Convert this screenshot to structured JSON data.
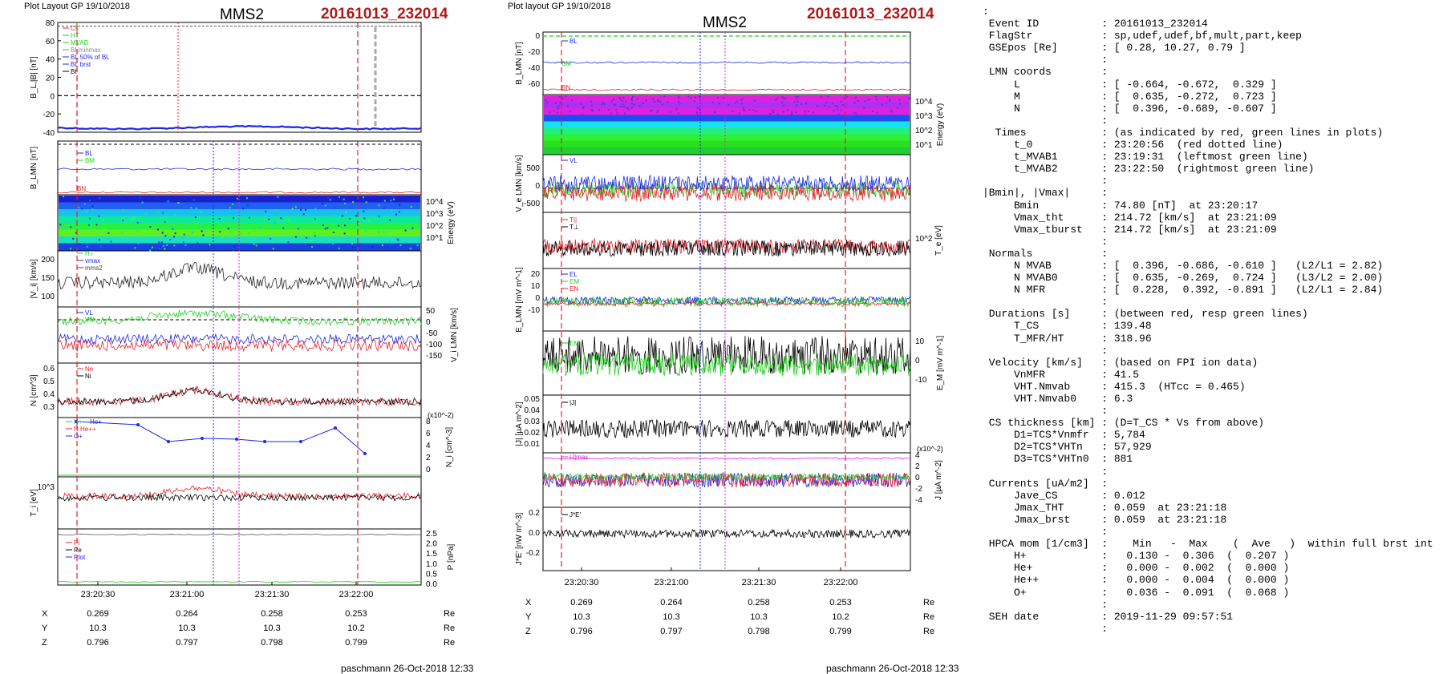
{
  "left_header": {
    "layout": "Plot Layout GP 19/10/2018",
    "spacecraft": "MMS2",
    "event": "20161013_232014",
    "footer": "paschmann 26-Oct-2018 12:33"
  },
  "mid_header": {
    "layout": "Plot layout GP 19/10/2018",
    "spacecraft": "MMS2",
    "event": "20161013_232014",
    "footer": "paschmann 26-Oct-2018 12:33"
  },
  "colors": {
    "red": "#e8202a",
    "green": "#22d020",
    "blue": "#1a28e8",
    "magenta": "#e020e0",
    "black": "#000000",
    "darkred": "#b01818"
  },
  "chart_data": [
    {
      "type": "line",
      "figure": "left",
      "time_ticks": [
        "23:20:30",
        "23:21:00",
        "23:21:30",
        "23:22:00"
      ],
      "ephemeris": {
        "rows": [
          {
            "label": "X",
            "values": [
              "0.269",
              "0.264",
              "0.258",
              "0.253"
            ],
            "unit": "Re"
          },
          {
            "label": "Y",
            "values": [
              "10.3",
              "10.3",
              "10.3",
              "10.2"
            ],
            "unit": "Re"
          },
          {
            "label": "Z",
            "values": [
              "0.796",
              "0.797",
              "0.798",
              "0.799"
            ],
            "unit": "Re"
          }
        ]
      },
      "panels": [
        {
          "ylabel": "B_L,|B| [nT]",
          "ylim": [
            -40,
            80
          ],
          "yticks": [
            "80",
            "60",
            "40",
            "20",
            "0",
            "-20",
            "-40"
          ],
          "legend": [
            "Cs",
            "HT",
            "MVAB",
            "BLminmax",
            "BL 50% of BL",
            "BL brst",
            "Bt"
          ]
        },
        {
          "ylabel": "B_LMN [nT]",
          "legend": [
            "BL",
            "BM",
            "BN"
          ]
        },
        {
          "type": "heatmap",
          "ylabel_right": "Energy (eV)",
          "yticks_right": [
            "10^4",
            "10^3",
            "10^2",
            "10^1"
          ]
        },
        {
          "ylabel": "|V_i| [km/s]",
          "yticks": [
            "200",
            "150",
            "100"
          ],
          "legend": [
            "HT",
            "vmax",
            "mms2"
          ]
        },
        {
          "ylabel_right": "V_i LMN [km/s]",
          "yticks_right": [
            "50",
            "0",
            "-50",
            "-100",
            "-150"
          ],
          "legend": [
            "VL",
            "VM",
            "VN"
          ]
        },
        {
          "ylabel": "N [cm^3]",
          "yticks": [
            "0.6",
            "0.5",
            "0.4",
            "0.3"
          ],
          "legend": [
            "Ne",
            "Ni"
          ]
        },
        {
          "ylabel_right": "N_i [cm^-3]",
          "ylabel_right_exp": "(x10^-2)",
          "yticks_right": [
            "8",
            "6",
            "4",
            "2",
            "0"
          ],
          "legend": [
            "H+",
            "He+",
            "N He++",
            "O+"
          ]
        },
        {
          "ylabel": "T_i [eV]",
          "yticks": [
            "10^3"
          ]
        },
        {
          "ylabel_right": "P [nPa]",
          "yticks_right": [
            "2.5",
            "2.0",
            "1.5",
            "1.0",
            "0.5",
            "0.0"
          ],
          "legend": [
            "Pi",
            "Pe",
            "Ptot"
          ]
        }
      ]
    },
    {
      "type": "line",
      "figure": "middle",
      "time_ticks": [
        "23:20:30",
        "23:21:00",
        "23:21:30",
        "23:22:00"
      ],
      "ephemeris": {
        "rows": [
          {
            "label": "X",
            "values": [
              "0.269",
              "0.264",
              "0.258",
              "0.253"
            ],
            "unit": "Re"
          },
          {
            "label": "Y",
            "values": [
              "10.3",
              "10.3",
              "10.3",
              "10.2"
            ],
            "unit": "Re"
          },
          {
            "label": "Z",
            "values": [
              "0.796",
              "0.797",
              "0.798",
              "0.799"
            ],
            "unit": "Re"
          }
        ]
      },
      "panels": [
        {
          "ylabel": "B_LMN [nT]",
          "yticks": [
            "0",
            "-20",
            "-40",
            "-60"
          ],
          "legend": [
            "BL",
            "BM",
            "BN"
          ]
        },
        {
          "type": "heatmap",
          "ylabel_right": "Energy (eV)",
          "yticks_right": [
            "10^4",
            "10^3",
            "10^2",
            "10^1"
          ]
        },
        {
          "ylabel": "V_e LMN [km/s]",
          "yticks": [
            "500",
            "0",
            "-500"
          ],
          "legend": [
            "VL"
          ]
        },
        {
          "ylabel_right": "T_e [eV]",
          "yticks_right": [
            "10^2"
          ],
          "legend": [
            "T||",
            "T⊥"
          ]
        },
        {
          "ylabel": "E_LMN [mV m^-1]",
          "yticks": [
            "20",
            "10",
            "0",
            "-10"
          ],
          "legend": [
            "EL",
            "EM",
            "EN"
          ]
        },
        {
          "ylabel_right": "E_M [mV m^-1]",
          "yticks_right": [
            "10",
            "0",
            "-10"
          ],
          "legend": [
            "EM"
          ]
        },
        {
          "ylabel": "|J| [µA m^-2]",
          "yticks": [
            "0.05",
            "0.04",
            "0.03",
            "0.02",
            "0.01"
          ],
          "legend": [
            "|J|"
          ]
        },
        {
          "ylabel_right": "J [µA m^-2]",
          "ylabel_right_exp": "(x10^-2)",
          "yticks_right": [
            "4",
            "2",
            "0",
            "-2",
            "-4"
          ],
          "legend": [
            "|J|max"
          ]
        },
        {
          "ylabel": "J*E' [nW m^-3]",
          "yticks": [
            "0.2",
            "0.0",
            "-0.2"
          ],
          "legend": [
            "J*E'"
          ]
        }
      ]
    }
  ],
  "summary": [
    ":",
    " Event ID          : 20161013_232014",
    " FlagStr           : sp,udef,udef,bf,mult,part,keep",
    " GSEpos [Re]       : [ 0.28, 10.27, 0.79 ]",
    "                   :",
    " LMN coords        :",
    "     L             : [ -0.664, -0.672,  0.329 ]",
    "     M             : [  0.635, -0.272,  0.723 ]",
    "     N             : [  0.396, -0.689, -0.607 ]",
    "                   :",
    "  Times            : (as indicated by red, green lines in plots)",
    "     t_0           : 23:20:56  (red dotted line)",
    "     t_MVAB1       : 23:19:31  (leftmost green line)",
    "     t_MVAB2       : 23:22:50  (rightmost green line)",
    "                   :",
    "|Bmin|, |Vmax|     :",
    "     Bmin          : 74.80 [nT]  at 23:20:17",
    "     Vmax_tht      : 214.72 [km/s]  at 23:21:09",
    "     Vmax_tburst   : 214.72 [km/s]  at 23:21:09",
    "                   :",
    " Normals           :",
    "     N MVAB        : [  0.396, -0.686, -0.610 ]   (L2/L1 = 2.82)",
    "     N MVAB0       : [  0.635, -0.269,  0.724 ]   (L3/L2 = 2.00)",
    "     N MFR         : [  0.228,  0.392, -0.891 ]   (L2/L1 = 2.84)",
    "                   :",
    " Durations [s]     : (between red, resp green lines)",
    "     T_CS          : 139.48",
    "     T_MFR/HT      : 318.96",
    "                   :",
    " Velocity [km/s]   : (based on FPI ion data)",
    "     VnMFR         : 41.5",
    "     VHT.Nmvab     : 415.3  (HTcc = 0.465)",
    "     VHT.Nmvab0    : 6.3",
    "                   :",
    " CS thickness [km] : (D=T_CS * Vs from above)",
    "     D1=TCS*Vnmfr  : 5,784",
    "     D2=TCS*VHTn   : 57,929",
    "     D3=TCS*VHTn0  : 881",
    "                   :",
    " Currents [uA/m2]  :",
    "     Jave_CS       : 0.012",
    "     Jmax_THT      : 0.059  at 23:21:18",
    "     Jmax_brst     : 0.059  at 23:21:18",
    "                   :",
    " HPCA mom [1/cm3]  :    Min   -  Max    (  Ave   )  within full brst int",
    "     H+            :   0.130 -  0.306  (  0.207 )",
    "     He+           :   0.000 -  0.002  (  0.000 )",
    "     He++          :   0.000 -  0.004  (  0.000 )",
    "     O+            :   0.036 -  0.091  (  0.068 )",
    "                   :",
    " SEH date          : 2019-11-29 09:57:51",
    "                   :"
  ]
}
